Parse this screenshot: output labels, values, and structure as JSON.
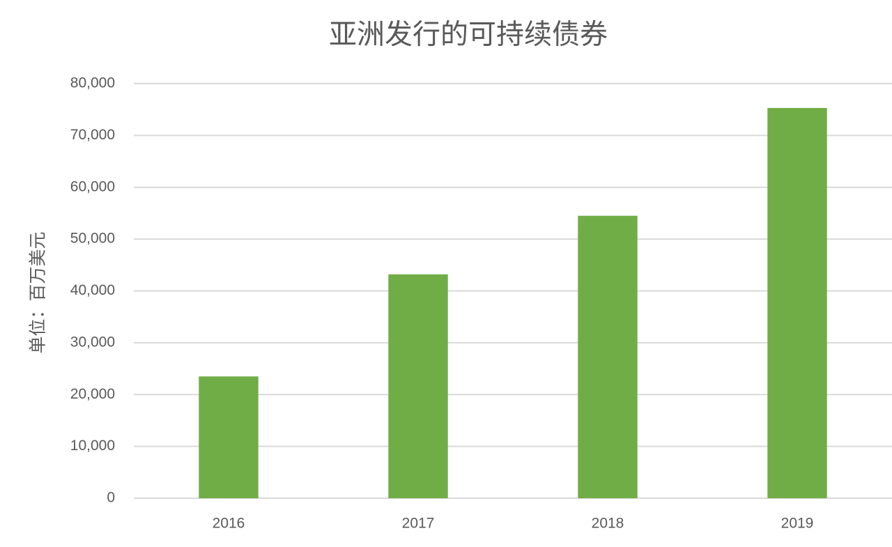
{
  "chart_data": {
    "type": "bar",
    "title": "亚洲发行的可持续债券",
    "y_label": "单位：百万美元",
    "categories": [
      "2016",
      "2017",
      "2018",
      "2019"
    ],
    "values": [
      23500,
      43200,
      54500,
      75300
    ],
    "color": "#70ad47",
    "ylim": [
      0,
      80000
    ],
    "yticks": [
      0,
      {
        "value": 10000,
        "label": "10,000"
      },
      {
        "value": 20000,
        "label": "20,000"
      },
      {
        "value": 30000,
        "label": "30,000"
      },
      {
        "value": 40000,
        "label": "40,000"
      },
      {
        "value": 50000,
        "label": "50,000"
      },
      {
        "value": 60000,
        "label": "60,000"
      },
      {
        "value": 70000,
        "label": "70,000"
      },
      {
        "value": 80000,
        "label": "80,000"
      }
    ],
    "grid": true
  }
}
